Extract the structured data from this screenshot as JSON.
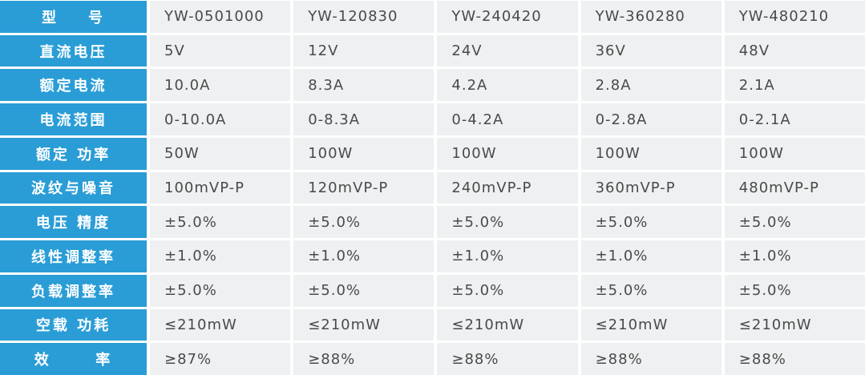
{
  "table": {
    "rows": [
      [
        "型    号",
        "YW-0501000",
        "YW-120830",
        "YW-240420",
        "YW-360280",
        "YW-480210"
      ],
      [
        "直流电压",
        "5V",
        "12V",
        "24V",
        "36V",
        "48V"
      ],
      [
        "额定电流",
        "10.0A",
        "8.3A",
        "4.2A",
        "2.8A",
        "2.1A"
      ],
      [
        "电流范围",
        "0-10.0A",
        "0-8.3A",
        "0-4.2A",
        "0-2.8A",
        "0-2.1A"
      ],
      [
        "额定 功率",
        "50W",
        "100W",
        "100W",
        "100W",
        "100W"
      ],
      [
        "波纹与噪音",
        "100mVP-P",
        "120mVP-P",
        "240mVP-P",
        "360mVP-P",
        "480mVP-P"
      ],
      [
        "电压 精度",
        "±5.0%",
        "±5.0%",
        "±5.0%",
        "±5.0%",
        "±5.0%"
      ],
      [
        "线性调整率",
        "±1.0%",
        "±1.0%",
        "±1.0%",
        "±1.0%",
        "±1.0%"
      ],
      [
        "负载调整率",
        "±5.0%",
        "±5.0%",
        "±5.0%",
        "±5.0%",
        "±5.0%"
      ],
      [
        "空载 功耗",
        "≤210mW",
        "≤210mW",
        "≤210mW",
        "≤210mW",
        "≤210mW"
      ],
      [
        "效      率",
        "≥87%",
        "≥88%",
        "≥88%",
        "≥88%",
        "≥88%"
      ]
    ]
  }
}
